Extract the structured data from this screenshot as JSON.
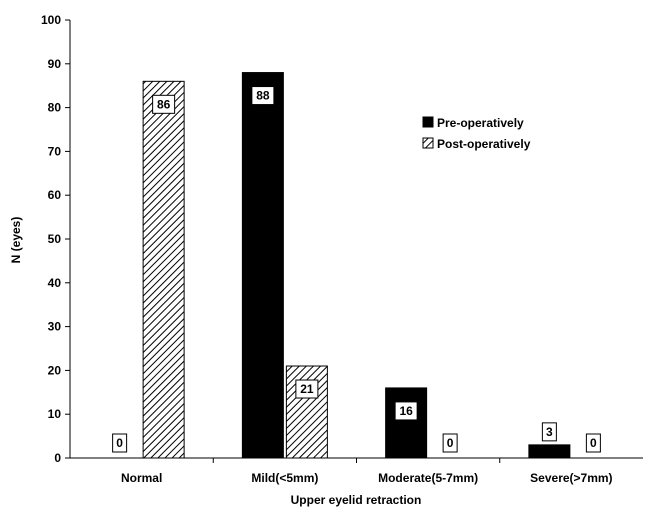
{
  "chart_data": {
    "type": "bar",
    "title": "",
    "xlabel": "Upper eyelid retraction",
    "ylabel": "N (eyes)",
    "ylim": [
      0,
      100
    ],
    "yticks": [
      0,
      10,
      20,
      30,
      40,
      50,
      60,
      70,
      80,
      90,
      100
    ],
    "categories": [
      "Normal",
      "Mild(<5mm)",
      "Moderate(5-7mm)",
      "Severe(>7mm)"
    ],
    "series": [
      {
        "name": "Pre-operatively",
        "values": [
          0,
          88,
          16,
          3
        ],
        "fill": "solid",
        "color": "#000000"
      },
      {
        "name": "Post-operatively",
        "values": [
          86,
          21,
          0,
          0
        ],
        "fill": "diagonal-hatch",
        "color": "#000000"
      }
    ],
    "data_labels": [
      [
        "0",
        "88",
        "16",
        "3"
      ],
      [
        "86",
        "21",
        "0",
        "0"
      ]
    ],
    "grid": false,
    "legend_position": "upper-right"
  }
}
